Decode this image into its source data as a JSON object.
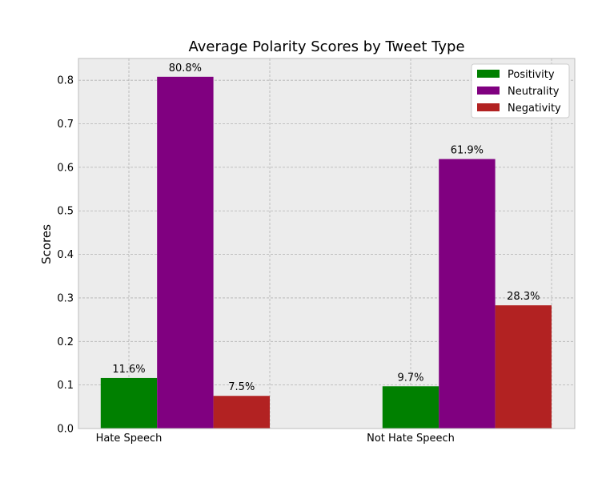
{
  "chart_data": {
    "type": "bar",
    "title": "Average Polarity Scores by Tweet Type",
    "xlabel": "",
    "ylabel": "Scores",
    "categories": [
      "Hate Speech",
      "Not Hate Speech"
    ],
    "series": [
      {
        "name": "Positivity",
        "color": "#008000",
        "values": [
          0.116,
          0.097
        ],
        "labels": [
          "11.6%",
          "9.7%"
        ]
      },
      {
        "name": "Neutrality",
        "color": "#800080",
        "values": [
          0.808,
          0.619
        ],
        "labels": [
          "80.8%",
          "61.9%"
        ]
      },
      {
        "name": "Negativity",
        "color": "#b22222",
        "values": [
          0.075,
          0.283
        ],
        "labels": [
          "7.5%",
          "28.3%"
        ]
      }
    ],
    "ylim": [
      0,
      0.85
    ],
    "yticks": [
      "0.0",
      "0.1",
      "0.2",
      "0.3",
      "0.4",
      "0.5",
      "0.6",
      "0.7",
      "0.8"
    ],
    "grid": true,
    "legend_position": "top-right",
    "background": "#ececec"
  }
}
